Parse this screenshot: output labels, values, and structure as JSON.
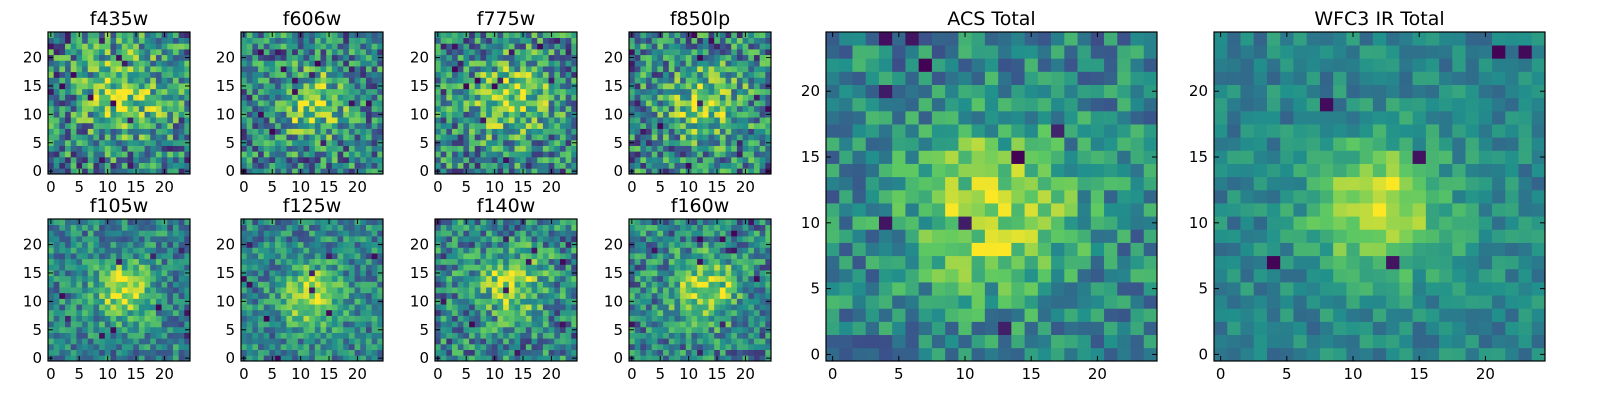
{
  "figure": {
    "background": "#ffffff",
    "colormap": "viridis",
    "colormap_stops": [
      "#440154",
      "#3b528b",
      "#21918c",
      "#5ec962",
      "#fde725"
    ]
  },
  "chart_data": [
    {
      "type": "heatmap",
      "title": "f435w",
      "grid_size": 25,
      "xlim": [
        -0.5,
        24.5
      ],
      "ylim": [
        -0.5,
        24.5
      ],
      "xticks": [
        0,
        5,
        10,
        15,
        20
      ],
      "yticks": [
        0,
        5,
        10,
        15,
        20
      ],
      "xtick_labels": [
        "0",
        "5",
        "10",
        "15",
        "20"
      ],
      "ytick_labels": [
        "0",
        "5",
        "10",
        "15",
        "20"
      ],
      "xlabel": "",
      "ylabel": "",
      "grid": false,
      "legend": "none",
      "value_range": [
        0,
        1
      ],
      "center": [
        13,
        14
      ],
      "peak": 0.72,
      "source_sigma": 5,
      "noise": 0.35,
      "seed": 11,
      "dark_pixels": 18
    },
    {
      "type": "heatmap",
      "title": "f606w",
      "grid_size": 25,
      "xlim": [
        -0.5,
        24.5
      ],
      "ylim": [
        -0.5,
        24.5
      ],
      "xticks": [
        0,
        5,
        10,
        15,
        20
      ],
      "yticks": [
        0,
        5,
        10,
        15,
        20
      ],
      "xtick_labels": [
        "0",
        "5",
        "10",
        "15",
        "20"
      ],
      "ytick_labels": [
        "0",
        "5",
        "10",
        "15",
        "20"
      ],
      "xlabel": "",
      "ylabel": "",
      "grid": false,
      "legend": "none",
      "value_range": [
        0,
        1
      ],
      "center": [
        12,
        12
      ],
      "peak": 0.72,
      "source_sigma": 4,
      "noise": 0.33,
      "seed": 23,
      "dark_pixels": 15
    },
    {
      "type": "heatmap",
      "title": "f775w",
      "grid_size": 25,
      "xlim": [
        -0.5,
        24.5
      ],
      "ylim": [
        -0.5,
        24.5
      ],
      "xticks": [
        0,
        5,
        10,
        15,
        20
      ],
      "yticks": [
        0,
        5,
        10,
        15,
        20
      ],
      "xtick_labels": [
        "0",
        "5",
        "10",
        "15",
        "20"
      ],
      "ytick_labels": [
        "0",
        "5",
        "10",
        "15",
        "20"
      ],
      "xlabel": "",
      "ylabel": "",
      "grid": false,
      "legend": "none",
      "value_range": [
        0,
        1
      ],
      "center": [
        13,
        13
      ],
      "peak": 0.68,
      "source_sigma": 5,
      "noise": 0.34,
      "seed": 37,
      "dark_pixels": 16
    },
    {
      "type": "heatmap",
      "title": "f850lp",
      "grid_size": 25,
      "xlim": [
        -0.5,
        24.5
      ],
      "ylim": [
        -0.5,
        24.5
      ],
      "xticks": [
        0,
        5,
        10,
        15,
        20
      ],
      "yticks": [
        0,
        5,
        10,
        15,
        20
      ],
      "xtick_labels": [
        "0",
        "5",
        "10",
        "15",
        "20"
      ],
      "ytick_labels": [
        "0",
        "5",
        "10",
        "15",
        "20"
      ],
      "xlabel": "",
      "ylabel": "",
      "grid": false,
      "legend": "none",
      "value_range": [
        0,
        1
      ],
      "center": [
        13,
        12
      ],
      "peak": 0.68,
      "source_sigma": 4.5,
      "noise": 0.34,
      "seed": 41,
      "dark_pixels": 16
    },
    {
      "type": "heatmap",
      "title": "f105w",
      "grid_size": 25,
      "xlim": [
        -0.5,
        24.5
      ],
      "ylim": [
        -0.5,
        24.5
      ],
      "xticks": [
        0,
        5,
        10,
        15,
        20
      ],
      "yticks": [
        0,
        5,
        10,
        15,
        20
      ],
      "xtick_labels": [
        "0",
        "5",
        "10",
        "15",
        "20"
      ],
      "ytick_labels": [
        "0",
        "5",
        "10",
        "15",
        "20"
      ],
      "xlabel": "",
      "ylabel": "",
      "grid": false,
      "legend": "none",
      "value_range": [
        0,
        1
      ],
      "center": [
        13,
        12
      ],
      "peak": 0.88,
      "source_sigma": 3.5,
      "noise": 0.24,
      "seed": 53,
      "dark_pixels": 10
    },
    {
      "type": "heatmap",
      "title": "f125w",
      "grid_size": 25,
      "xlim": [
        -0.5,
        24.5
      ],
      "ylim": [
        -0.5,
        24.5
      ],
      "xticks": [
        0,
        5,
        10,
        15,
        20
      ],
      "yticks": [
        0,
        5,
        10,
        15,
        20
      ],
      "xtick_labels": [
        "0",
        "5",
        "10",
        "15",
        "20"
      ],
      "ytick_labels": [
        "0",
        "5",
        "10",
        "15",
        "20"
      ],
      "xlabel": "",
      "ylabel": "",
      "grid": false,
      "legend": "none",
      "value_range": [
        0,
        1
      ],
      "center": [
        12,
        11
      ],
      "peak": 0.9,
      "source_sigma": 3.5,
      "noise": 0.24,
      "seed": 61,
      "dark_pixels": 10
    },
    {
      "type": "heatmap",
      "title": "f140w",
      "grid_size": 25,
      "xlim": [
        -0.5,
        24.5
      ],
      "ylim": [
        -0.5,
        24.5
      ],
      "xticks": [
        0,
        5,
        10,
        15,
        20
      ],
      "yticks": [
        0,
        5,
        10,
        15,
        20
      ],
      "xtick_labels": [
        "0",
        "5",
        "10",
        "15",
        "20"
      ],
      "ytick_labels": [
        "0",
        "5",
        "10",
        "15",
        "20"
      ],
      "xlabel": "",
      "ylabel": "",
      "grid": false,
      "legend": "none",
      "value_range": [
        0,
        1
      ],
      "center": [
        13,
        13
      ],
      "peak": 0.78,
      "source_sigma": 4,
      "noise": 0.3,
      "seed": 71,
      "dark_pixels": 12
    },
    {
      "type": "heatmap",
      "title": "f160w",
      "grid_size": 25,
      "xlim": [
        -0.5,
        24.5
      ],
      "ylim": [
        -0.5,
        24.5
      ],
      "xticks": [
        0,
        5,
        10,
        15,
        20
      ],
      "yticks": [
        0,
        5,
        10,
        15,
        20
      ],
      "xtick_labels": [
        "0",
        "5",
        "10",
        "15",
        "20"
      ],
      "ytick_labels": [
        "0",
        "5",
        "10",
        "15",
        "20"
      ],
      "xlabel": "",
      "ylabel": "",
      "grid": false,
      "legend": "none",
      "value_range": [
        0,
        1
      ],
      "center": [
        13,
        12
      ],
      "peak": 0.84,
      "source_sigma": 4,
      "noise": 0.28,
      "seed": 83,
      "dark_pixels": 12
    },
    {
      "type": "heatmap",
      "title": "ACS Total",
      "grid_size": 25,
      "xlim": [
        -0.5,
        24.5
      ],
      "ylim": [
        -0.5,
        24.5
      ],
      "xticks": [
        0,
        5,
        10,
        15,
        20
      ],
      "yticks": [
        0,
        5,
        10,
        15,
        20
      ],
      "xtick_labels": [
        "0",
        "5",
        "10",
        "15",
        "20"
      ],
      "ytick_labels": [
        "0",
        "5",
        "10",
        "15",
        "20"
      ],
      "xlabel": "",
      "ylabel": "",
      "grid": false,
      "legend": "none",
      "value_range": [
        0,
        1
      ],
      "center": [
        12,
        11
      ],
      "peak": 0.78,
      "source_sigma": 4.5,
      "noise": 0.22,
      "seed": 97,
      "dark_pixels": 9
    },
    {
      "type": "heatmap",
      "title": "WFC3 IR Total",
      "grid_size": 25,
      "xlim": [
        -0.5,
        24.5
      ],
      "ylim": [
        -0.5,
        24.5
      ],
      "xticks": [
        0,
        5,
        10,
        15,
        20
      ],
      "yticks": [
        0,
        5,
        10,
        15,
        20
      ],
      "xtick_labels": [
        "0",
        "5",
        "10",
        "15",
        "20"
      ],
      "ytick_labels": [
        "0",
        "5",
        "10",
        "15",
        "20"
      ],
      "xlabel": "",
      "ylabel": "",
      "grid": false,
      "legend": "none",
      "value_range": [
        0,
        1
      ],
      "center": [
        12,
        11
      ],
      "peak": 0.95,
      "source_sigma": 3.5,
      "noise": 0.14,
      "seed": 109,
      "dark_pixels": 6
    }
  ]
}
